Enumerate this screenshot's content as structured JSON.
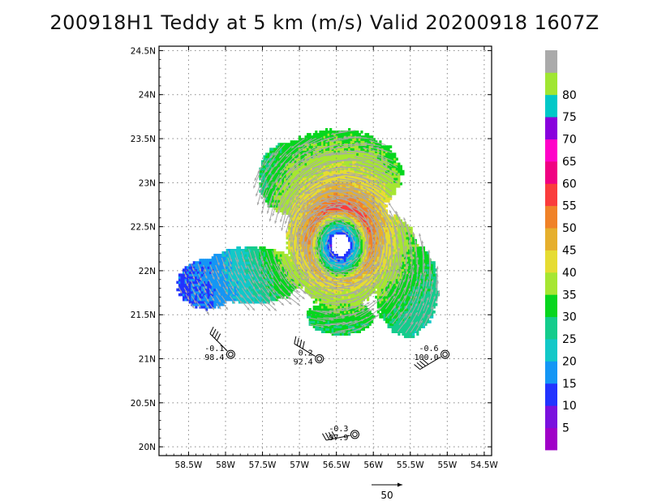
{
  "title": "200918H1 Teddy at 5 km (m/s) Valid 20200918 1607Z",
  "colors": {
    "grid": "#888888",
    "vector": "#a8a8a8",
    "frame": "#000000"
  },
  "chart_data": {
    "type": "heatmap",
    "xlim": [
      -58.9,
      -54.4
    ],
    "ylim": [
      19.9,
      24.55
    ],
    "x_ticks": [
      {
        "value": -58.5,
        "label": "58.5W"
      },
      {
        "value": -58.0,
        "label": "58W"
      },
      {
        "value": -57.5,
        "label": "57.5W"
      },
      {
        "value": -57.0,
        "label": "57W"
      },
      {
        "value": -56.5,
        "label": "56.5W"
      },
      {
        "value": -56.0,
        "label": "56W"
      },
      {
        "value": -55.5,
        "label": "55.5W"
      },
      {
        "value": -55.0,
        "label": "55W"
      },
      {
        "value": -54.5,
        "label": "54.5W"
      }
    ],
    "y_ticks": [
      {
        "value": 20.0,
        "label": "20N"
      },
      {
        "value": 20.5,
        "label": "20.5N"
      },
      {
        "value": 21.0,
        "label": "21N"
      },
      {
        "value": 21.5,
        "label": "21.5N"
      },
      {
        "value": 22.0,
        "label": "22N"
      },
      {
        "value": 22.5,
        "label": "22.5N"
      },
      {
        "value": 23.0,
        "label": "23N"
      },
      {
        "value": 23.5,
        "label": "23.5N"
      },
      {
        "value": 24.0,
        "label": "24N"
      },
      {
        "value": 24.5,
        "label": "24.5N"
      }
    ],
    "grid": true,
    "center": {
      "lon": -56.45,
      "lat": 22.3
    },
    "colorbar": {
      "levels": [
        0,
        5,
        10,
        15,
        20,
        25,
        30,
        35,
        40,
        45,
        50,
        55,
        60,
        65,
        70,
        75,
        80,
        85
      ],
      "labels": [
        "5",
        "10",
        "15",
        "20",
        "25",
        "30",
        "35",
        "40",
        "45",
        "50",
        "55",
        "60",
        "65",
        "70",
        "75",
        "80"
      ],
      "colors": [
        "#a000c8",
        "#7a10de",
        "#2233ff",
        "#1496f5",
        "#12c8c8",
        "#14cc8c",
        "#06d61e",
        "#a6e632",
        "#e6dc32",
        "#e6af2d",
        "#f08228",
        "#fa3c3c",
        "#f00082",
        "#ff00c8",
        "#8800dd",
        "#00c8c8",
        "#a0e632",
        "#aaaaaa"
      ]
    },
    "wind_field": {
      "units": "m/s",
      "max_speed": 52,
      "rmw_deg": 0.42,
      "lobes": [
        {
          "name": "central",
          "lon": -56.45,
          "lat": 22.35,
          "rx": 0.72,
          "ry": 0.78
        },
        {
          "name": "north",
          "lon": -56.5,
          "lat": 23.1,
          "rx": 0.88,
          "ry": 0.5
        },
        {
          "name": "northwest",
          "lon": -57.15,
          "lat": 23.05,
          "rx": 0.4,
          "ry": 0.4
        },
        {
          "name": "west",
          "lon": -57.65,
          "lat": 21.95,
          "rx": 0.72,
          "ry": 0.32
        },
        {
          "name": "far-west",
          "lon": -58.25,
          "lat": 21.85,
          "rx": 0.4,
          "ry": 0.28
        },
        {
          "name": "southeast",
          "lon": -55.55,
          "lat": 21.8,
          "rx": 0.42,
          "ry": 0.55
        },
        {
          "name": "east",
          "lon": -55.75,
          "lat": 22.2,
          "rx": 0.35,
          "ry": 0.42
        },
        {
          "name": "south",
          "lon": -56.45,
          "lat": 21.47,
          "rx": 0.45,
          "ry": 0.2
        }
      ]
    },
    "dropsondes": [
      {
        "lon": -57.93,
        "lat": 21.05,
        "label_top": "-0.1",
        "label_bottom": "98.4"
      },
      {
        "lon": -56.73,
        "lat": 21.0,
        "label_top": "0.2",
        "label_bottom": "92.4"
      },
      {
        "lon": -55.03,
        "lat": 21.05,
        "label_top": "-0.6",
        "label_bottom": "100.0"
      },
      {
        "lon": -56.25,
        "lat": 20.14,
        "label_top": "-0.3",
        "label_bottom": "97.9"
      }
    ],
    "reference_vector": {
      "speed": 50,
      "label": "50"
    }
  }
}
